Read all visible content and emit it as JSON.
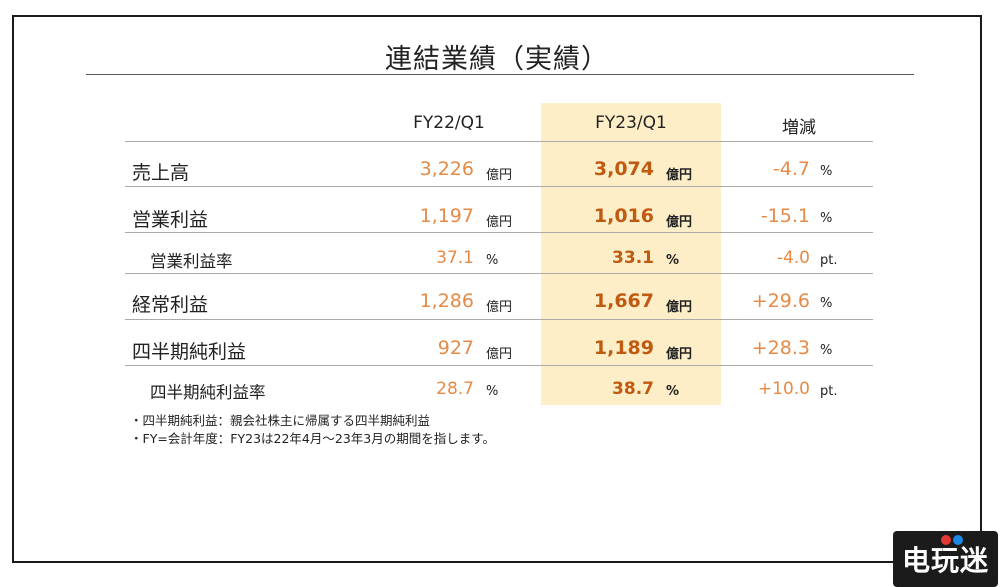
{
  "title": "連結業績（実績）",
  "headers": {
    "fy22": "FY22/Q1",
    "fy23": "FY23/Q1",
    "change": "増減"
  },
  "rows": [
    {
      "label": "売上高",
      "fy22": "3,226",
      "fy22_unit": "億円",
      "fy23": "3,074",
      "fy23_unit": "億円",
      "change": "-4.7",
      "change_unit": "%"
    },
    {
      "label": "営業利益",
      "fy22": "1,197",
      "fy22_unit": "億円",
      "fy23": "1,016",
      "fy23_unit": "億円",
      "change": "-15.1",
      "change_unit": "%"
    },
    {
      "label": "営業利益率",
      "fy22": "37.1",
      "fy22_unit": "%",
      "fy23": "33.1",
      "fy23_unit": "%",
      "change": "-4.0",
      "change_unit": "pt."
    },
    {
      "label": "経常利益",
      "fy22": "1,286",
      "fy22_unit": "億円",
      "fy23": "1,667",
      "fy23_unit": "億円",
      "change": "+29.6",
      "change_unit": "%"
    },
    {
      "label": "四半期純利益",
      "fy22": "927",
      "fy22_unit": "億円",
      "fy23": "1,189",
      "fy23_unit": "億円",
      "change": "+28.3",
      "change_unit": "%"
    },
    {
      "label": "四半期純利益率",
      "fy22": "28.7",
      "fy22_unit": "%",
      "fy23": "38.7",
      "fy23_unit": "%",
      "change": "+10.0",
      "change_unit": "pt."
    }
  ],
  "notes": [
    "・四半期純利益：親会社株主に帰属する四半期純利益",
    "・FY=会計年度：FY23は22年4月～23年3月の期間を指します。"
  ],
  "watermark": "电玩迷",
  "colors": {
    "highlight": "#fdeec8",
    "fy22_value": "#e68a45",
    "fy23_value": "#c05a10",
    "change_value": "#e68a45"
  }
}
